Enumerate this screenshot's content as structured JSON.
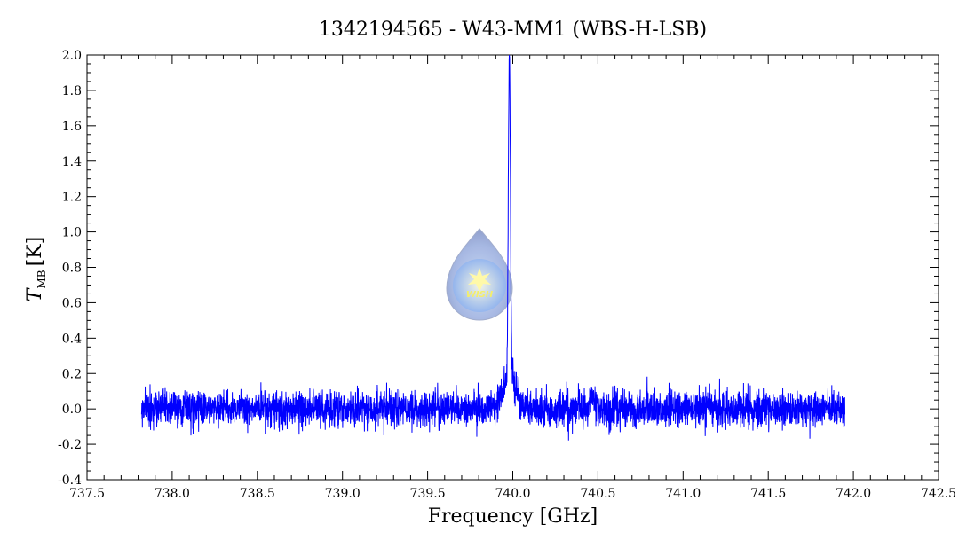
{
  "chart_data": {
    "type": "line",
    "title": "1342194565 - W43-MM1 (WBS-H-LSB)",
    "xlabel": "Frequency [GHz]",
    "ylabel_main": "T",
    "ylabel_sub": "MB",
    "ylabel_unit": "[K]",
    "xlim": [
      737.5,
      742.5
    ],
    "ylim": [
      -0.4,
      2.0
    ],
    "x_ticks": [
      737.5,
      738.0,
      738.5,
      739.0,
      739.5,
      740.0,
      740.5,
      741.0,
      741.5,
      742.0,
      742.5
    ],
    "x_tick_labels": [
      "737.5",
      "738.0",
      "738.5",
      "739.0",
      "739.5",
      "740.0",
      "740.5",
      "741.0",
      "741.5",
      "742.0",
      "742.5"
    ],
    "y_ticks": [
      -0.4,
      -0.2,
      0.0,
      0.2,
      0.4,
      0.6,
      0.8,
      1.0,
      1.2,
      1.4,
      1.6,
      1.8,
      2.0
    ],
    "y_tick_labels": [
      "-0.4",
      "-0.2",
      "0.0",
      "0.2",
      "0.4",
      "0.6",
      "0.8",
      "1.0",
      "1.2",
      "1.4",
      "1.6",
      "1.8",
      "2.0"
    ],
    "grid": false,
    "series": [
      {
        "color": "#0000ff",
        "x_range": [
          737.82,
          741.95
        ],
        "baseline": 0.0,
        "noise_rms": 0.05,
        "features": [
          {
            "center": 739.98,
            "peak": 1.83,
            "width": 0.006
          },
          {
            "center": 739.98,
            "peak": 0.18,
            "width": 0.04
          },
          {
            "center": 740.47,
            "peak": 0.1,
            "width": 0.01
          }
        ]
      }
    ],
    "logo": {
      "text": "WISH",
      "icon": "wish-droplet-logo"
    }
  }
}
